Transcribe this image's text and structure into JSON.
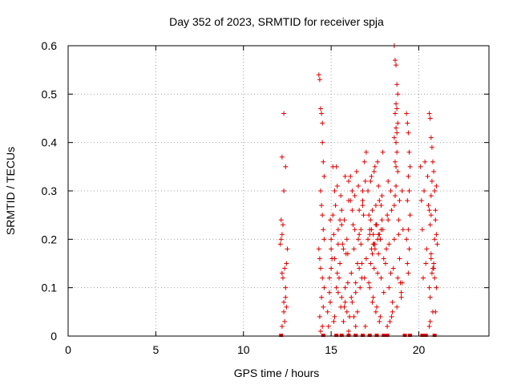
{
  "chart_data": {
    "type": "scatter",
    "title": "Day 352 of 2023, SRMTID for receiver spja",
    "xlabel": "GPS time / hours",
    "ylabel": "SRMTID / TECUs",
    "xlim": [
      0,
      24
    ],
    "ylim": [
      0,
      0.6
    ],
    "xticks": [
      0,
      5,
      10,
      15,
      20
    ],
    "yticks": [
      0,
      0.1,
      0.2,
      0.3,
      0.4,
      0.5,
      0.6
    ],
    "xtick_labels": [
      "0",
      "5",
      "10",
      "15",
      "20"
    ],
    "ytick_labels": [
      "0",
      "0.1",
      "0.2",
      "0.3",
      "0.4",
      "0.5",
      "0.6"
    ],
    "grid": true,
    "marker": "+",
    "color": "#dd0000",
    "series": [
      {
        "name": "SRMTID",
        "x": [
          12.1,
          12.15,
          12.2,
          12.2,
          12.25,
          12.3,
          12.3,
          12.35,
          12.4,
          12.4,
          12.45,
          12.5,
          12.2,
          12.3,
          12.4,
          12.15,
          12.25,
          12.35,
          12.45,
          12.2,
          12.3,
          14.3,
          14.35,
          14.4,
          14.45,
          14.5,
          14.5,
          14.55,
          14.6,
          14.4,
          14.45,
          14.5,
          14.55,
          14.6,
          14.3,
          14.35,
          14.4,
          14.5,
          14.6,
          14.45,
          14.55,
          14.35,
          14.5,
          14.4,
          14.8,
          14.9,
          15.0,
          15.1,
          15.2,
          15.3,
          15.4,
          15.5,
          15.6,
          15.7,
          15.8,
          15.9,
          16.0,
          16.1,
          16.2,
          16.3,
          16.4,
          16.5,
          16.6,
          16.7,
          16.8,
          16.9,
          17.0,
          14.85,
          14.95,
          15.05,
          15.15,
          15.25,
          15.35,
          15.45,
          15.55,
          15.65,
          15.75,
          15.85,
          15.95,
          16.05,
          16.15,
          16.25,
          16.35,
          16.45,
          16.55,
          16.65,
          16.75,
          16.85,
          16.95,
          14.9,
          15.0,
          15.2,
          15.4,
          15.6,
          15.8,
          16.0,
          16.2,
          16.4,
          16.6,
          16.8,
          17.0,
          14.95,
          15.15,
          15.35,
          15.55,
          15.75,
          15.95,
          16.15,
          16.35,
          16.55,
          16.75,
          16.95,
          15.0,
          15.3,
          15.6,
          15.9,
          16.2,
          16.5,
          16.8,
          15.1,
          15.4,
          15.7,
          16.0,
          16.3,
          16.6,
          16.9,
          15.2,
          15.5,
          15.8,
          16.1,
          16.4,
          16.7,
          17.1,
          17.2,
          17.3,
          17.4,
          17.5,
          17.6,
          17.7,
          17.8,
          17.9,
          18.0,
          17.15,
          17.25,
          17.35,
          17.45,
          17.55,
          17.65,
          17.75,
          17.85,
          17.95,
          17.1,
          17.2,
          17.3,
          17.4,
          17.5,
          17.6,
          17.7,
          17.8,
          17.9,
          18.0,
          17.15,
          17.25,
          17.35,
          17.45,
          17.55,
          17.65,
          17.75,
          17.85,
          17.95,
          17.2,
          17.4,
          17.6,
          17.8,
          17.3,
          17.5,
          17.7,
          17.25,
          17.45,
          17.65,
          17.85,
          17.35,
          17.55,
          17.75,
          18.1,
          18.2,
          18.3,
          18.4,
          18.5,
          18.6,
          18.7,
          18.8,
          18.9,
          19.0,
          19.1,
          18.15,
          18.25,
          18.35,
          18.45,
          18.55,
          18.65,
          18.75,
          18.85,
          18.95,
          19.05,
          18.6,
          18.65,
          18.7,
          18.75,
          18.8,
          18.7,
          18.75,
          18.65,
          18.8,
          18.7,
          18.75,
          18.6,
          18.7,
          18.75,
          18.2,
          18.4,
          18.6,
          18.8,
          19.0,
          18.3,
          18.5,
          18.7,
          18.9,
          18.25,
          18.45,
          18.65,
          18.85,
          19.05,
          19.3,
          19.35,
          19.4,
          19.45,
          19.5,
          19.4,
          19.45,
          19.35,
          19.5,
          19.4,
          19.3,
          19.45,
          19.35,
          19.4,
          20.1,
          20.2,
          20.3,
          20.4,
          20.5,
          20.6,
          20.7,
          20.8,
          20.9,
          21.0,
          20.15,
          20.25,
          20.35,
          20.45,
          20.55,
          20.65,
          20.75,
          20.85,
          20.95,
          20.6,
          20.65,
          20.7,
          20.75,
          20.8,
          20.85,
          20.9,
          20.95,
          21.0,
          21.05,
          20.7,
          20.8,
          20.9,
          21.0,
          20.75,
          20.85,
          20.95,
          20.65,
          20.6,
          20.65,
          20.7,
          20.6,
          20.7,
          12.15,
          14.55,
          15.3,
          15.6,
          16.0,
          16.4,
          16.8,
          17.2,
          17.6,
          18.0,
          18.2,
          19.2,
          19.5,
          20.2,
          20.4,
          20.9
        ],
        "y": [
          0.19,
          0.2,
          0.21,
          0.13,
          0.12,
          0.07,
          0.05,
          0.03,
          0.1,
          0.08,
          0.15,
          0.18,
          0.37,
          0.3,
          0.35,
          0.24,
          0.23,
          0.14,
          0.06,
          0.02,
          0.46,
          0.54,
          0.53,
          0.47,
          0.46,
          0.44,
          0.4,
          0.36,
          0.33,
          0.3,
          0.27,
          0.25,
          0.22,
          0.2,
          0.18,
          0.16,
          0.14,
          0.12,
          0.1,
          0.08,
          0.06,
          0.04,
          0.02,
          0.01,
          0.05,
          0.12,
          0.18,
          0.25,
          0.3,
          0.35,
          0.22,
          0.15,
          0.08,
          0.03,
          0.1,
          0.2,
          0.28,
          0.33,
          0.26,
          0.18,
          0.09,
          0.05,
          0.14,
          0.22,
          0.3,
          0.36,
          0.38,
          0.02,
          0.07,
          0.16,
          0.21,
          0.27,
          0.31,
          0.12,
          0.06,
          0.19,
          0.24,
          0.17,
          0.11,
          0.04,
          0.13,
          0.23,
          0.29,
          0.34,
          0.2,
          0.1,
          0.15,
          0.25,
          0.32,
          0.09,
          0.14,
          0.04,
          0.19,
          0.26,
          0.33,
          0.01,
          0.07,
          0.11,
          0.21,
          0.28,
          0.16,
          0.24,
          0.03,
          0.13,
          0.29,
          0.06,
          0.17,
          0.08,
          0.22,
          0.31,
          0.12,
          0.02,
          0.2,
          0.1,
          0.23,
          0.05,
          0.3,
          0.15,
          0.27,
          0.35,
          0.09,
          0.18,
          0.32,
          0.04,
          0.26,
          0.12,
          0.16,
          0.24,
          0.07,
          0.28,
          0.02,
          0.19,
          0.2,
          0.22,
          0.18,
          0.21,
          0.19,
          0.23,
          0.17,
          0.2,
          0.24,
          0.16,
          0.25,
          0.15,
          0.26,
          0.14,
          0.27,
          0.13,
          0.28,
          0.12,
          0.22,
          0.3,
          0.1,
          0.33,
          0.08,
          0.35,
          0.06,
          0.31,
          0.04,
          0.29,
          0.09,
          0.11,
          0.32,
          0.07,
          0.34,
          0.05,
          0.36,
          0.03,
          0.27,
          0.38,
          0.21,
          0.19,
          0.23,
          0.2,
          0.22,
          0.18,
          0.21,
          0.24,
          0.19,
          0.2,
          0.22,
          0.17,
          0.23,
          0.21,
          0.15,
          0.25,
          0.1,
          0.3,
          0.05,
          0.2,
          0.35,
          0.12,
          0.28,
          0.08,
          0.22,
          0.18,
          0.32,
          0.03,
          0.26,
          0.14,
          0.36,
          0.06,
          0.24,
          0.11,
          0.3,
          0.6,
          0.57,
          0.56,
          0.52,
          0.5,
          0.48,
          0.47,
          0.46,
          0.44,
          0.43,
          0.42,
          0.41,
          0.4,
          0.38,
          0.02,
          0.13,
          0.27,
          0.34,
          0.09,
          0.19,
          0.07,
          0.31,
          0.16,
          0.24,
          0.04,
          0.29,
          0.21,
          0.11,
          0.46,
          0.44,
          0.42,
          0.38,
          0.35,
          0.33,
          0.3,
          0.28,
          0.25,
          0.22,
          0.2,
          0.18,
          0.15,
          0.13,
          0.35,
          0.22,
          0.3,
          0.15,
          0.33,
          0.1,
          0.25,
          0.05,
          0.2,
          0.31,
          0.28,
          0.12,
          0.36,
          0.18,
          0.27,
          0.08,
          0.32,
          0.14,
          0.24,
          0.46,
          0.45,
          0.41,
          0.39,
          0.36,
          0.34,
          0.3,
          0.26,
          0.21,
          0.19,
          0.16,
          0.14,
          0.12,
          0.1,
          0.13,
          0.15,
          0.05,
          0.03,
          0.02,
          0.23,
          0.17,
          0.26,
          0.29,
          0.0,
          0.0,
          0.0,
          0.0,
          0.0,
          0.0,
          0.0,
          0.0,
          0.0,
          0.0,
          0.0,
          0.0,
          0.0,
          0.0,
          0.0,
          0.0
        ]
      }
    ]
  }
}
